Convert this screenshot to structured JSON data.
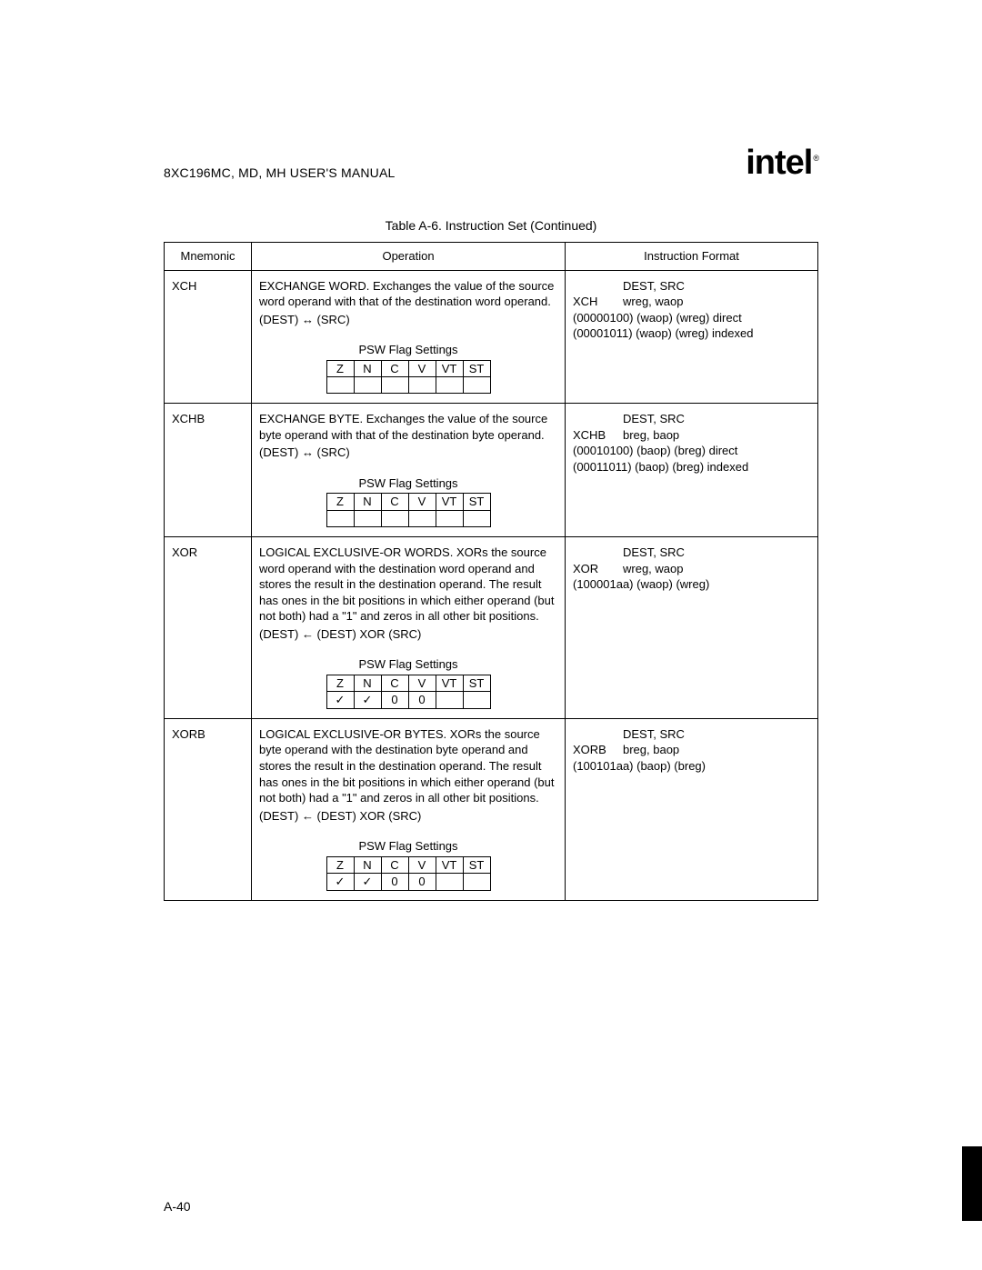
{
  "header": {
    "title": "8XC196MC, MD, MH USER'S MANUAL",
    "logo_text": "int",
    "logo_text2": "e",
    "logo_text3": "l",
    "logo_reg": "®"
  },
  "caption": "Table A-6.  Instruction Set (Continued)",
  "columns": {
    "mnemonic": "Mnemonic",
    "operation": "Operation",
    "format": "Instruction Format"
  },
  "psw_title": "PSW Flag Settings",
  "psw_headers": [
    "Z",
    "N",
    "C",
    "V",
    "VT",
    "ST"
  ],
  "rows": [
    {
      "mnemonic": "XCH",
      "op_text": "EXCHANGE WORD. Exchanges the value of the source word operand with that of the destination word operand.",
      "op_expr": "(DEST) ↔ (SRC)",
      "psw_values": [
        "—",
        "—",
        "—",
        "—",
        "—",
        "—"
      ],
      "fmt": {
        "l1": "DEST, SRC",
        "mn": "XCH",
        "args": "wreg, waop",
        "lines": [
          "(00000100) (waop) (wreg) direct",
          "(00001011) (waop) (wreg) indexed"
        ]
      }
    },
    {
      "mnemonic": "XCHB",
      "op_text": "EXCHANGE BYTE. Exchanges the value of the source byte operand with that of the destination byte operand.",
      "op_expr": "(DEST) ↔ (SRC)",
      "psw_values": [
        "—",
        "—",
        "—",
        "—",
        "—",
        "—"
      ],
      "fmt": {
        "l1": "DEST, SRC",
        "mn": "XCHB",
        "args": "breg, baop",
        "lines": [
          "(00010100) (baop) (breg) direct",
          "(00011011) (baop) (breg) indexed"
        ]
      }
    },
    {
      "mnemonic": "XOR",
      "op_text": "LOGICAL EXCLUSIVE-OR WORDS. XORs the source word operand with the destination word operand and stores the result in the destination operand. The result has ones in the bit positions in which either operand (but not both) had a \"1\" and zeros in all other bit positions.",
      "op_expr": "(DEST) ← (DEST) XOR (SRC)",
      "psw_values": [
        "✓",
        "✓",
        "0",
        "0",
        "—",
        "—"
      ],
      "fmt": {
        "l1": "DEST, SRC",
        "mn": "XOR",
        "args": "wreg, waop",
        "lines": [
          "(100001aa) (waop) (wreg)"
        ]
      }
    },
    {
      "mnemonic": "XORB",
      "op_text": "LOGICAL EXCLUSIVE-OR BYTES. XORs the source byte operand with the destination byte operand and stores the result in the destination operand.  The result has ones in the bit positions in which either operand (but not both) had a \"1\" and zeros in all other bit positions.",
      "op_expr": "(DEST) ← (DEST) XOR (SRC)",
      "psw_values": [
        "✓",
        "✓",
        "0",
        "0",
        "—",
        "—"
      ],
      "fmt": {
        "l1": "DEST, SRC",
        "mn": "XORB",
        "args": "breg, baop",
        "lines": [
          "(100101aa) (baop) (breg)"
        ]
      }
    }
  ],
  "page_number": "A-40"
}
